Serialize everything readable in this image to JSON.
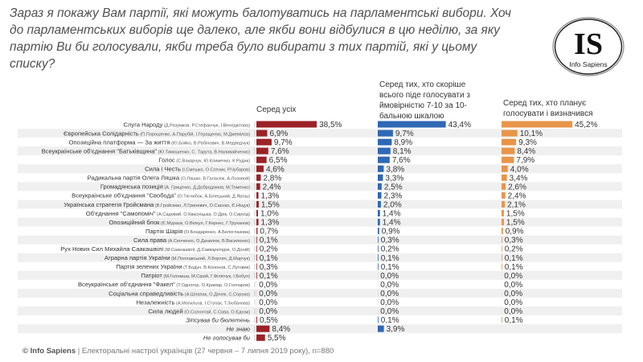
{
  "title": "Зараз я покажу Вам партії, які можуть балотуватись на парламентські вибори. Хоч до парламентських виборів ще далеко, але якби вони відбулися в цю неділю, за яку партію Ви би голосували, якби треба було вибирати з тих партій, які у цьому списку?",
  "logo": {
    "letters": "IS",
    "text": "Info Sapiens"
  },
  "footer": {
    "brand": "© Info Sapiens",
    "text": " | Електоральні настрої українців (27 червня – 7 липня 2019 року), n=880"
  },
  "chart_data": {
    "type": "bar",
    "orientation": "horizontal",
    "grid": false,
    "value_suffix": "%",
    "decimal_separator": ",",
    "categories": [
      {
        "party": "Слуга Народу",
        "leaders": "(Д.Разумков, Р.Стефанчук, І.Венедіктова)"
      },
      {
        "party": "Європейська Солідарність",
        "leaders": "(П.Порошенко, А.Парубій, І.Геращенко, М.Джемілєв)"
      },
      {
        "party": "Опозиційна платформа — За життя",
        "leaders": "(Ю.Бойко, В.Рабінович, В.Медведчук)"
      },
      {
        "party": "Всеукраїнське об'єднання \"Батьківщина\"",
        "leaders": "(Ю.Тимошенко, С. Тарута, В.Наливайченко)"
      },
      {
        "party": "Голос",
        "leaders": "(С.Вакарчук, Ю.Клименко, К.Рудик)"
      },
      {
        "party": "Сила і Честь",
        "leaders": "(І.Смешко, О.Сотник, Р.Чубаров)"
      },
      {
        "party": "Радикальна партія Олега Ляшка",
        "leaders": "(О.Ляшко, В.Галасюк, А.Лозовой)"
      },
      {
        "party": "Громадянська позиція",
        "leaders": "(А. Гриценко, Д.Добродомов, М.Томенко)"
      },
      {
        "party": "Всеукраїнське об'єднання \"Свобода\"",
        "leaders": "(О.Тягнибок, А.Білецький, Д.Ярош)"
      },
      {
        "party": "Українська стратегія Гройсмана",
        "leaders": "(В.Гройсман, Л.Гриневич, О.Саєнко, Є.Ніщук)"
      },
      {
        "party": "Об'єднання \"Самопоміч\"",
        "leaders": "(А.Садовий, О.Кваснiцька, О.Дрік, О.Сироїд)"
      },
      {
        "party": "Опозиційний блок",
        "leaders": "(Є.Мураєв, О.Вілкул, Г.Кернес, Г.Труханов)"
      },
      {
        "party": "Партія Шарія",
        "leaders": "(О.Бондаренко, А.Белоглазова)"
      },
      {
        "party": "Сила права",
        "leaders": "(А.Сенченко, О.Данилюк, В.Василенко)"
      },
      {
        "party": "Рух Нових Сил Михайла Саакашвілі",
        "leaders": "(М.Саакашвілі, Д.Сакварелідзе, О.Доній)"
      },
      {
        "party": "Аграрна партія України",
        "leaders": "(М.Поплавський, Л.Бортич, Д.Марчук)"
      },
      {
        "party": "Партія зелених України",
        "leaders": "(Т.Бодун, В.Кононов, С.Луговик)"
      },
      {
        "party": "Патріот",
        "leaders": "(М.Голомша, М.Сірий, Г.Філіпчук, І.Бобул)"
      },
      {
        "party": "Всеукраїнське об'єднання \"Факел\"",
        "leaders": "(Т.Одногор, О.Крамар, О.Гончаров)"
      },
      {
        "party": "Соціальна справедливість",
        "leaders": "(А.Шлапак, О.Дячек, С.Сорока)"
      },
      {
        "party": "Незалежність",
        "leaders": "(А.Могильов, І.Ступак, Т.Зюбанова)"
      },
      {
        "party": "Сила людей",
        "leaders": "(О.Солонтай, С.Сова, О.Єднак)"
      },
      {
        "party": "Зіпсував би бюлетень",
        "leaders": "",
        "italic": true
      },
      {
        "party": "Не знаю",
        "leaders": "",
        "italic": true
      },
      {
        "party": "Не голосував би",
        "leaders": "",
        "italic": true
      }
    ],
    "series": [
      {
        "name": "Серед усіх",
        "color": "#9b2226",
        "values": [
          38.5,
          6.9,
          9.7,
          7.6,
          6.5,
          4.6,
          2.8,
          2.4,
          1.3,
          1.5,
          1.0,
          1.3,
          0.7,
          0.1,
          0.2,
          0.1,
          0.3,
          0.1,
          0.0,
          0.0,
          0.0,
          0.0,
          0.5,
          8.4,
          5.5
        ]
      },
      {
        "name": "Серед тих, хто скоріше всього піде  голосувати з ймовірністю 7-10 за 10-бальною шкалою",
        "color": "#2f68b4",
        "values": [
          43.4,
          9.7,
          8.9,
          8.1,
          7.6,
          3.8,
          3.3,
          2.5,
          2.3,
          2.0,
          1.4,
          1.4,
          0.9,
          0.3,
          0.2,
          0.1,
          0.1,
          0.0,
          0.0,
          0.0,
          0.0,
          0.0,
          0.1,
          3.9,
          null
        ]
      },
      {
        "name": "Серед тих, хто планує голосувати і визначився",
        "color": "#e8954a",
        "values": [
          45.2,
          10.1,
          9.3,
          8.4,
          7.9,
          4.0,
          3.4,
          2.6,
          2.4,
          2.1,
          1.5,
          1.5,
          0.9,
          0.3,
          0.2,
          0.1,
          0.1,
          0.0,
          0.0,
          0.0,
          0.0,
          0.0,
          0.1,
          null,
          null
        ]
      }
    ]
  }
}
